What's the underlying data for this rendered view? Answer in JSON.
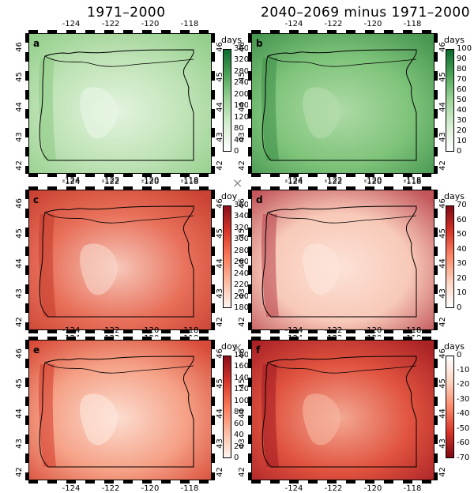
{
  "columns": {
    "left": "1971–2000",
    "right": "2040–2069 minus 1971–2000"
  },
  "lon_ticks": [
    "-124",
    "-122",
    "-120",
    "-118"
  ],
  "lat_ticks": [
    "46",
    "45",
    "44",
    "43",
    "42"
  ],
  "panels": [
    {
      "letter": "a",
      "unit": "days",
      "colors": [
        "#ffffff",
        "#d8efd3",
        "#9fd59b",
        "#4fa55a",
        "#0b6b2e"
      ],
      "labels": [
        "360",
        "320",
        "280",
        "240",
        "200",
        "160",
        "120",
        "80",
        "40",
        "0"
      ]
    },
    {
      "letter": "b",
      "unit": "days",
      "colors": [
        "#ffffff",
        "#d8efd3",
        "#9fd59b",
        "#4fa55a",
        "#0b6b2e"
      ],
      "labels": [
        "100",
        "90",
        "80",
        "70",
        "60",
        "50",
        "40",
        "30",
        "20",
        "10",
        "0"
      ]
    },
    {
      "letter": "c",
      "unit": "doy",
      "colors": [
        "#fff5f0",
        "#fcbba1",
        "#fb7a5a",
        "#d8352a",
        "#8b0f1a"
      ],
      "labels": [
        "360",
        "340",
        "320",
        "300",
        "280",
        "260",
        "240",
        "220",
        "200",
        "180"
      ]
    },
    {
      "letter": "d",
      "unit": "days",
      "colors": [
        "#ffffff",
        "#fdd3c1",
        "#fb8a6a",
        "#d8352a",
        "#7f0a15"
      ],
      "labels": [
        "70",
        "60",
        "50",
        "40",
        "30",
        "20",
        "10",
        "0"
      ]
    },
    {
      "letter": "e",
      "unit": "doy",
      "colors": [
        "#fff5f0",
        "#fcbba1",
        "#fb7a5a",
        "#d8352a",
        "#8b0f1a"
      ],
      "labels": [
        "180",
        "160",
        "140",
        "120",
        "100",
        "80",
        "60",
        "40",
        "20",
        "0"
      ]
    },
    {
      "letter": "f",
      "unit": "days",
      "colors": [
        "#7f0a15",
        "#d8352a",
        "#fb8a6a",
        "#fdd3c1",
        "#ffffff"
      ],
      "labels": [
        "0",
        "-10",
        "-20",
        "-30",
        "-40",
        "-50",
        "-60",
        "-70"
      ]
    }
  ],
  "map_colors": {
    "a": {
      "base": "#bfe3b6",
      "light": "#eaf6e6",
      "dark": "#8ccb84"
    },
    "b": {
      "base": "#7fc47b",
      "light": "#b7deaf",
      "dark": "#3f8f4a"
    },
    "c": {
      "base": "#e8705a",
      "light": "#f9d7cb",
      "dark": "#c53a2c"
    },
    "d": {
      "base": "#f8c9b8",
      "light": "#fde6dc",
      "dark": "#b8414a"
    },
    "e": {
      "base": "#f5a085",
      "light": "#fde8de",
      "dark": "#d33c2b"
    },
    "f": {
      "base": "#e0533f",
      "light": "#f7b8a2",
      "dark": "#a21a22"
    }
  },
  "decor": {
    "cross_mark": "×"
  }
}
